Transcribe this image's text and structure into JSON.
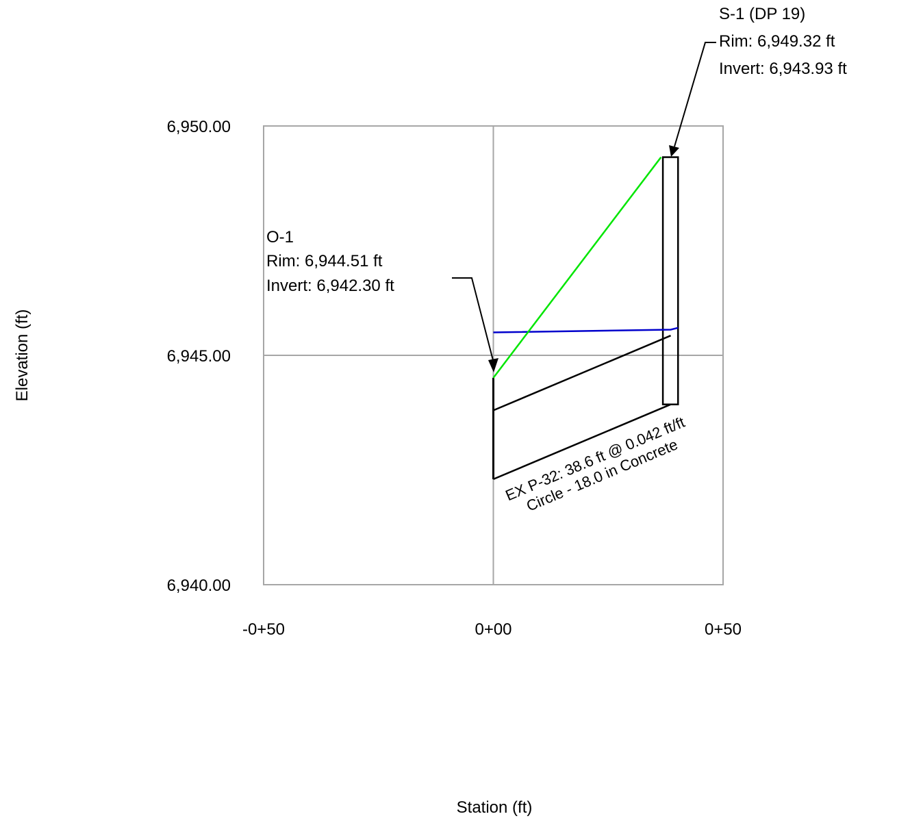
{
  "chart_data": {
    "type": "line",
    "title": "",
    "xlabel": "Station (ft)",
    "ylabel": "Elevation (ft)",
    "xlim": [
      -50,
      50
    ],
    "ylim": [
      6940,
      6950
    ],
    "x_ticks": [
      {
        "value": -50,
        "label": "-0+50"
      },
      {
        "value": 0,
        "label": "0+00"
      },
      {
        "value": 50,
        "label": "0+50"
      }
    ],
    "y_ticks": [
      {
        "value": 6940,
        "label": "6,940.00"
      },
      {
        "value": 6945,
        "label": "6,945.00"
      },
      {
        "value": 6950,
        "label": "6,950.00"
      }
    ],
    "grid": true,
    "colors": {
      "frame": "#a6a6a6",
      "grid": "#a6a6a6",
      "hgl": "#0000cc",
      "egl": "#00e600",
      "pipe": "#000000"
    },
    "pipe": {
      "start_station": 0,
      "end_station": 38.6,
      "invert_start": 6942.3,
      "invert_end": 6943.93,
      "crown_start": 6943.8,
      "crown_end": 6945.43,
      "label_line1": "EX P-32: 38.6 ft @ 0.042 ft/ft",
      "label_line2": "Circle - 18.0 in Concrete"
    },
    "hydraulic_grade": {
      "x": [
        0,
        38.6,
        40.2
      ],
      "y": [
        6945.5,
        6945.56,
        6945.6
      ]
    },
    "energy_grade": {
      "x": [
        0,
        36.5
      ],
      "y": [
        6944.51,
        6949.32
      ]
    },
    "nodes": [
      {
        "id": "O-1",
        "name": "O-1",
        "station": 0,
        "rim": 6944.51,
        "invert": 6942.3,
        "lines": [
          "O-1",
          "Rim: 6,944.51 ft",
          "Invert: 6,942.30 ft"
        ]
      },
      {
        "id": "S-1",
        "name": "S-1 (DP 19)",
        "station_left": 36.9,
        "station_right": 40.2,
        "rim": 6949.32,
        "invert": 6943.93,
        "lines": [
          "S-1 (DP 19)",
          "Rim: 6,949.32 ft",
          "Invert: 6,943.93 ft"
        ]
      }
    ]
  }
}
